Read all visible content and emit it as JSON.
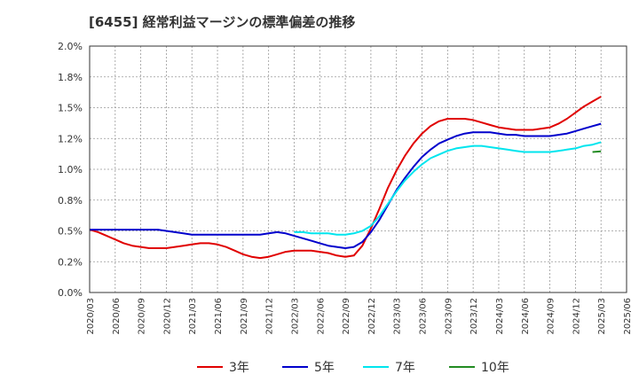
{
  "title": "[6455]  経常利益マージンの標準偏差の推移",
  "chart_data": {
    "type": "line",
    "title": "[6455]  経常利益マージンの標準偏差の推移",
    "xlabel": "",
    "ylabel": "",
    "ylim": [
      0,
      2.0
    ],
    "y_ticks": [
      "0.0%",
      "0.2%",
      "0.5%",
      "0.8%",
      "1.0%",
      "1.2%",
      "1.5%",
      "1.8%",
      "2.0%"
    ],
    "x_ticks": [
      "2020/03",
      "2020/06",
      "2020/09",
      "2020/12",
      "2021/03",
      "2021/06",
      "2021/09",
      "2021/12",
      "2022/03",
      "2022/06",
      "2022/09",
      "2022/12",
      "2023/03",
      "2023/06",
      "2023/09",
      "2023/12",
      "2024/03",
      "2024/06",
      "2024/09",
      "2024/12",
      "2025/03",
      "2025/06"
    ],
    "grid": true,
    "legend_position": "bottom",
    "series": [
      {
        "name": "3年",
        "color": "#e00000",
        "points": [
          [
            "2020/03",
            0.51
          ],
          [
            "2020/04",
            0.49
          ],
          [
            "2020/05",
            0.46
          ],
          [
            "2020/06",
            0.43
          ],
          [
            "2020/07",
            0.4
          ],
          [
            "2020/08",
            0.38
          ],
          [
            "2020/09",
            0.37
          ],
          [
            "2020/10",
            0.36
          ],
          [
            "2020/11",
            0.36
          ],
          [
            "2020/12",
            0.36
          ],
          [
            "2021/01",
            0.37
          ],
          [
            "2021/02",
            0.38
          ],
          [
            "2021/03",
            0.39
          ],
          [
            "2021/04",
            0.4
          ],
          [
            "2021/05",
            0.4
          ],
          [
            "2021/06",
            0.39
          ],
          [
            "2021/07",
            0.37
          ],
          [
            "2021/08",
            0.34
          ],
          [
            "2021/09",
            0.31
          ],
          [
            "2021/10",
            0.29
          ],
          [
            "2021/11",
            0.28
          ],
          [
            "2021/12",
            0.29
          ],
          [
            "2022/01",
            0.31
          ],
          [
            "2022/02",
            0.33
          ],
          [
            "2022/03",
            0.34
          ],
          [
            "2022/04",
            0.34
          ],
          [
            "2022/05",
            0.34
          ],
          [
            "2022/06",
            0.33
          ],
          [
            "2022/07",
            0.32
          ],
          [
            "2022/08",
            0.3
          ],
          [
            "2022/09",
            0.29
          ],
          [
            "2022/10",
            0.3
          ],
          [
            "2022/11",
            0.38
          ],
          [
            "2022/12",
            0.52
          ],
          [
            "2023/01",
            0.68
          ],
          [
            "2023/02",
            0.85
          ],
          [
            "2023/03",
            0.99
          ],
          [
            "2023/04",
            1.11
          ],
          [
            "2023/05",
            1.21
          ],
          [
            "2023/06",
            1.29
          ],
          [
            "2023/07",
            1.35
          ],
          [
            "2023/08",
            1.39
          ],
          [
            "2023/09",
            1.41
          ],
          [
            "2023/10",
            1.41
          ],
          [
            "2023/11",
            1.41
          ],
          [
            "2023/12",
            1.4
          ],
          [
            "2024/01",
            1.38
          ],
          [
            "2024/02",
            1.36
          ],
          [
            "2024/03",
            1.34
          ],
          [
            "2024/04",
            1.33
          ],
          [
            "2024/05",
            1.32
          ],
          [
            "2024/06",
            1.32
          ],
          [
            "2024/07",
            1.32
          ],
          [
            "2024/08",
            1.33
          ],
          [
            "2024/09",
            1.34
          ],
          [
            "2024/10",
            1.37
          ],
          [
            "2024/11",
            1.41
          ],
          [
            "2024/12",
            1.46
          ],
          [
            "2025/01",
            1.51
          ],
          [
            "2025/02",
            1.55
          ],
          [
            "2025/03",
            1.59
          ]
        ]
      },
      {
        "name": "5年",
        "color": "#0000cc",
        "points": [
          [
            "2020/03",
            0.51
          ],
          [
            "2020/04",
            0.51
          ],
          [
            "2020/05",
            0.51
          ],
          [
            "2020/06",
            0.51
          ],
          [
            "2020/07",
            0.51
          ],
          [
            "2020/08",
            0.51
          ],
          [
            "2020/09",
            0.51
          ],
          [
            "2020/10",
            0.51
          ],
          [
            "2020/11",
            0.51
          ],
          [
            "2020/12",
            0.5
          ],
          [
            "2021/01",
            0.49
          ],
          [
            "2021/02",
            0.48
          ],
          [
            "2021/03",
            0.47
          ],
          [
            "2021/04",
            0.47
          ],
          [
            "2021/05",
            0.47
          ],
          [
            "2021/06",
            0.47
          ],
          [
            "2021/07",
            0.47
          ],
          [
            "2021/08",
            0.47
          ],
          [
            "2021/09",
            0.47
          ],
          [
            "2021/10",
            0.47
          ],
          [
            "2021/11",
            0.47
          ],
          [
            "2021/12",
            0.48
          ],
          [
            "2022/01",
            0.49
          ],
          [
            "2022/02",
            0.48
          ],
          [
            "2022/03",
            0.46
          ],
          [
            "2022/04",
            0.44
          ],
          [
            "2022/05",
            0.42
          ],
          [
            "2022/06",
            0.4
          ],
          [
            "2022/07",
            0.38
          ],
          [
            "2022/08",
            0.37
          ],
          [
            "2022/09",
            0.36
          ],
          [
            "2022/10",
            0.37
          ],
          [
            "2022/11",
            0.41
          ],
          [
            "2022/12",
            0.49
          ],
          [
            "2023/01",
            0.59
          ],
          [
            "2023/02",
            0.71
          ],
          [
            "2023/03",
            0.83
          ],
          [
            "2023/04",
            0.93
          ],
          [
            "2023/05",
            1.02
          ],
          [
            "2023/06",
            1.1
          ],
          [
            "2023/07",
            1.16
          ],
          [
            "2023/08",
            1.21
          ],
          [
            "2023/09",
            1.24
          ],
          [
            "2023/10",
            1.27
          ],
          [
            "2023/11",
            1.29
          ],
          [
            "2023/12",
            1.3
          ],
          [
            "2024/01",
            1.3
          ],
          [
            "2024/02",
            1.3
          ],
          [
            "2024/03",
            1.29
          ],
          [
            "2024/04",
            1.28
          ],
          [
            "2024/05",
            1.28
          ],
          [
            "2024/06",
            1.27
          ],
          [
            "2024/07",
            1.27
          ],
          [
            "2024/08",
            1.27
          ],
          [
            "2024/09",
            1.27
          ],
          [
            "2024/10",
            1.28
          ],
          [
            "2024/11",
            1.29
          ],
          [
            "2024/12",
            1.31
          ],
          [
            "2025/01",
            1.33
          ],
          [
            "2025/02",
            1.35
          ],
          [
            "2025/03",
            1.37
          ]
        ]
      },
      {
        "name": "7年",
        "color": "#00e5ee",
        "points": [
          [
            "2022/03",
            0.49
          ],
          [
            "2022/04",
            0.49
          ],
          [
            "2022/05",
            0.48
          ],
          [
            "2022/06",
            0.48
          ],
          [
            "2022/07",
            0.48
          ],
          [
            "2022/08",
            0.47
          ],
          [
            "2022/09",
            0.47
          ],
          [
            "2022/10",
            0.48
          ],
          [
            "2022/11",
            0.5
          ],
          [
            "2022/12",
            0.54
          ],
          [
            "2023/01",
            0.62
          ],
          [
            "2023/02",
            0.72
          ],
          [
            "2023/03",
            0.82
          ],
          [
            "2023/04",
            0.91
          ],
          [
            "2023/05",
            0.98
          ],
          [
            "2023/06",
            1.04
          ],
          [
            "2023/07",
            1.09
          ],
          [
            "2023/08",
            1.12
          ],
          [
            "2023/09",
            1.15
          ],
          [
            "2023/10",
            1.17
          ],
          [
            "2023/11",
            1.18
          ],
          [
            "2023/12",
            1.19
          ],
          [
            "2024/01",
            1.19
          ],
          [
            "2024/02",
            1.18
          ],
          [
            "2024/03",
            1.17
          ],
          [
            "2024/04",
            1.16
          ],
          [
            "2024/05",
            1.15
          ],
          [
            "2024/06",
            1.14
          ],
          [
            "2024/07",
            1.14
          ],
          [
            "2024/08",
            1.14
          ],
          [
            "2024/09",
            1.14
          ],
          [
            "2024/10",
            1.15
          ],
          [
            "2024/11",
            1.16
          ],
          [
            "2024/12",
            1.17
          ],
          [
            "2025/01",
            1.19
          ],
          [
            "2025/02",
            1.2
          ],
          [
            "2025/03",
            1.22
          ]
        ]
      },
      {
        "name": "10年",
        "color": "#228b22",
        "points": [
          [
            "2025/02",
            1.14
          ],
          [
            "2025/03",
            1.145
          ]
        ]
      }
    ]
  }
}
